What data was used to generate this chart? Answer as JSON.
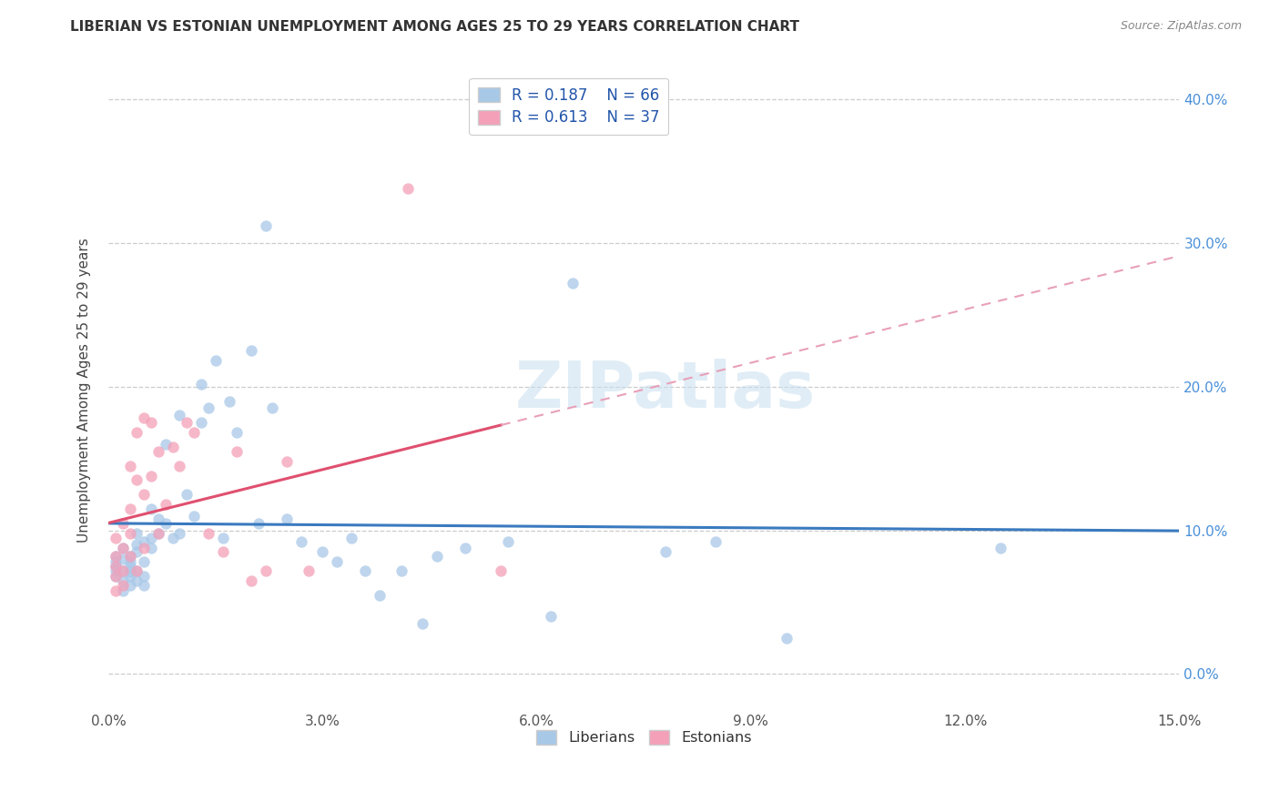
{
  "title": "LIBERIAN VS ESTONIAN UNEMPLOYMENT AMONG AGES 25 TO 29 YEARS CORRELATION CHART",
  "source": "Source: ZipAtlas.com",
  "ylabel": "Unemployment Among Ages 25 to 29 years",
  "xlim": [
    0.0,
    0.15
  ],
  "ylim": [
    -0.025,
    0.42
  ],
  "xtick_vals": [
    0.0,
    0.03,
    0.06,
    0.09,
    0.12,
    0.15
  ],
  "xtick_labels": [
    "0.0%",
    "3.0%",
    "6.0%",
    "9.0%",
    "12.0%",
    "15.0%"
  ],
  "ytick_vals": [
    0.0,
    0.1,
    0.2,
    0.3,
    0.4
  ],
  "ytick_labels": [
    "0.0%",
    "10.0%",
    "20.0%",
    "30.0%",
    "40.0%"
  ],
  "legend_R_liberian": "R = 0.187",
  "legend_N_liberian": "N = 66",
  "legend_R_estonian": "R = 0.613",
  "legend_N_estonian": "N = 37",
  "color_liberian": "#a8c8e8",
  "color_estonian": "#f4a0b8",
  "color_line_liberian": "#3a7abf",
  "color_line_estonian": "#e05070",
  "color_dashed_estonian": "#e8a0b8",
  "watermark": "ZIPatlas",
  "lib_x": [
    0.001,
    0.001,
    0.001,
    0.001,
    0.001,
    0.002,
    0.002,
    0.002,
    0.002,
    0.002,
    0.003,
    0.003,
    0.003,
    0.003,
    0.003,
    0.003,
    0.004,
    0.004,
    0.004,
    0.004,
    0.004,
    0.005,
    0.005,
    0.005,
    0.005,
    0.006,
    0.006,
    0.006,
    0.007,
    0.007,
    0.008,
    0.008,
    0.009,
    0.01,
    0.01,
    0.011,
    0.012,
    0.013,
    0.013,
    0.014,
    0.015,
    0.016,
    0.017,
    0.018,
    0.02,
    0.021,
    0.022,
    0.023,
    0.025,
    0.027,
    0.03,
    0.032,
    0.034,
    0.036,
    0.038,
    0.041,
    0.044,
    0.046,
    0.05,
    0.056,
    0.062,
    0.065,
    0.078,
    0.085,
    0.095,
    0.125
  ],
  "lib_y": [
    0.075,
    0.082,
    0.068,
    0.078,
    0.072,
    0.08,
    0.072,
    0.065,
    0.058,
    0.088,
    0.075,
    0.068,
    0.082,
    0.062,
    0.078,
    0.071,
    0.085,
    0.072,
    0.09,
    0.065,
    0.098,
    0.078,
    0.068,
    0.092,
    0.062,
    0.115,
    0.095,
    0.088,
    0.098,
    0.108,
    0.105,
    0.16,
    0.095,
    0.18,
    0.098,
    0.125,
    0.11,
    0.175,
    0.202,
    0.185,
    0.218,
    0.095,
    0.19,
    0.168,
    0.225,
    0.105,
    0.312,
    0.185,
    0.108,
    0.092,
    0.085,
    0.078,
    0.095,
    0.072,
    0.055,
    0.072,
    0.035,
    0.082,
    0.088,
    0.092,
    0.04,
    0.272,
    0.085,
    0.092,
    0.025,
    0.088
  ],
  "est_x": [
    0.001,
    0.001,
    0.001,
    0.001,
    0.001,
    0.002,
    0.002,
    0.002,
    0.002,
    0.003,
    0.003,
    0.003,
    0.003,
    0.004,
    0.004,
    0.004,
    0.005,
    0.005,
    0.005,
    0.006,
    0.006,
    0.007,
    0.007,
    0.008,
    0.009,
    0.01,
    0.011,
    0.012,
    0.014,
    0.016,
    0.018,
    0.02,
    0.022,
    0.025,
    0.028,
    0.042,
    0.055
  ],
  "est_y": [
    0.075,
    0.082,
    0.068,
    0.095,
    0.058,
    0.088,
    0.072,
    0.105,
    0.062,
    0.115,
    0.098,
    0.082,
    0.145,
    0.072,
    0.135,
    0.168,
    0.088,
    0.178,
    0.125,
    0.138,
    0.175,
    0.098,
    0.155,
    0.118,
    0.158,
    0.145,
    0.175,
    0.168,
    0.098,
    0.085,
    0.155,
    0.065,
    0.072,
    0.148,
    0.072,
    0.338,
    0.072
  ]
}
